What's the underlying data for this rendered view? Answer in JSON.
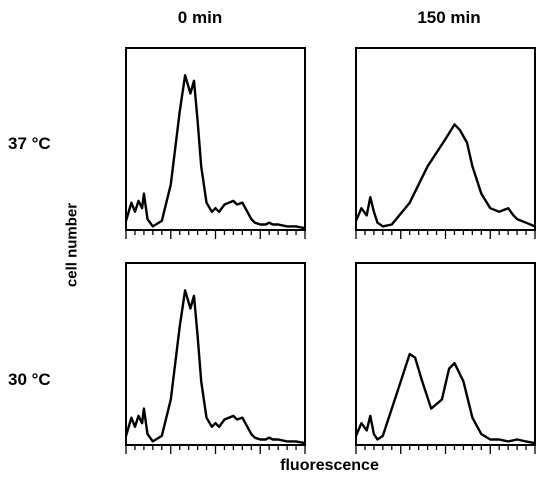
{
  "column_titles": [
    "0 min",
    "150 min"
  ],
  "row_labels": [
    "37 °C",
    "30 °C"
  ],
  "ylabel": "cell number",
  "xlabel": "fluorescence",
  "chart_data": [
    {
      "type": "line",
      "panel": "37 °C / 0 min",
      "title": "",
      "xlabel": "",
      "ylabel": "",
      "xlim": [
        0,
        1
      ],
      "ylim": [
        0,
        1
      ],
      "grid": false,
      "series": [
        {
          "x": [
            0,
            0.03,
            0.05,
            0.07,
            0.09,
            0.1,
            0.12,
            0.15,
            0.2,
            0.25,
            0.3,
            0.33,
            0.36,
            0.38,
            0.4,
            0.42,
            0.45,
            0.48,
            0.5,
            0.52,
            0.55,
            0.6,
            0.62,
            0.65,
            0.7,
            0.72,
            0.75,
            0.78,
            0.8,
            0.82,
            0.85,
            0.9,
            0.95,
            1.0
          ],
          "y": [
            0.05,
            0.15,
            0.1,
            0.16,
            0.12,
            0.2,
            0.06,
            0.02,
            0.05,
            0.25,
            0.65,
            0.85,
            0.75,
            0.82,
            0.6,
            0.35,
            0.15,
            0.1,
            0.12,
            0.1,
            0.14,
            0.16,
            0.14,
            0.15,
            0.06,
            0.04,
            0.03,
            0.03,
            0.04,
            0.03,
            0.03,
            0.02,
            0.02,
            0.01
          ]
        }
      ]
    },
    {
      "type": "line",
      "panel": "37 °C / 150 min",
      "title": "",
      "xlabel": "",
      "ylabel": "",
      "xlim": [
        0,
        1
      ],
      "ylim": [
        0,
        1
      ],
      "grid": false,
      "series": [
        {
          "x": [
            0,
            0.03,
            0.06,
            0.08,
            0.1,
            0.12,
            0.15,
            0.2,
            0.3,
            0.4,
            0.5,
            0.55,
            0.58,
            0.62,
            0.65,
            0.7,
            0.75,
            0.8,
            0.85,
            0.88,
            0.9,
            0.95,
            1.0
          ],
          "y": [
            0.05,
            0.12,
            0.08,
            0.18,
            0.1,
            0.04,
            0.02,
            0.03,
            0.15,
            0.35,
            0.5,
            0.58,
            0.55,
            0.48,
            0.35,
            0.2,
            0.12,
            0.1,
            0.12,
            0.08,
            0.06,
            0.04,
            0.02
          ]
        }
      ]
    },
    {
      "type": "line",
      "panel": "30 °C / 0 min",
      "title": "",
      "xlabel": "",
      "ylabel": "",
      "xlim": [
        0,
        1
      ],
      "ylim": [
        0,
        1
      ],
      "grid": false,
      "series": [
        {
          "x": [
            0,
            0.03,
            0.05,
            0.07,
            0.09,
            0.1,
            0.12,
            0.15,
            0.2,
            0.25,
            0.3,
            0.33,
            0.36,
            0.38,
            0.4,
            0.42,
            0.45,
            0.48,
            0.5,
            0.52,
            0.55,
            0.6,
            0.62,
            0.65,
            0.7,
            0.72,
            0.75,
            0.78,
            0.8,
            0.82,
            0.85,
            0.9,
            0.95,
            1.0
          ],
          "y": [
            0.05,
            0.15,
            0.1,
            0.16,
            0.12,
            0.2,
            0.06,
            0.02,
            0.05,
            0.25,
            0.65,
            0.85,
            0.75,
            0.82,
            0.6,
            0.35,
            0.15,
            0.1,
            0.12,
            0.1,
            0.14,
            0.16,
            0.14,
            0.15,
            0.06,
            0.04,
            0.03,
            0.03,
            0.04,
            0.03,
            0.03,
            0.02,
            0.02,
            0.01
          ]
        }
      ]
    },
    {
      "type": "line",
      "panel": "30 °C / 150 min",
      "title": "",
      "xlabel": "",
      "ylabel": "",
      "xlim": [
        0,
        1
      ],
      "ylim": [
        0,
        1
      ],
      "grid": false,
      "series": [
        {
          "x": [
            0,
            0.03,
            0.06,
            0.08,
            0.1,
            0.12,
            0.15,
            0.2,
            0.25,
            0.3,
            0.33,
            0.37,
            0.42,
            0.48,
            0.52,
            0.55,
            0.6,
            0.65,
            0.7,
            0.75,
            0.8,
            0.85,
            0.9,
            0.95,
            1.0
          ],
          "y": [
            0.05,
            0.12,
            0.08,
            0.16,
            0.06,
            0.03,
            0.05,
            0.2,
            0.35,
            0.5,
            0.48,
            0.35,
            0.2,
            0.25,
            0.42,
            0.45,
            0.35,
            0.15,
            0.06,
            0.03,
            0.03,
            0.02,
            0.03,
            0.02,
            0.01
          ]
        }
      ]
    }
  ]
}
